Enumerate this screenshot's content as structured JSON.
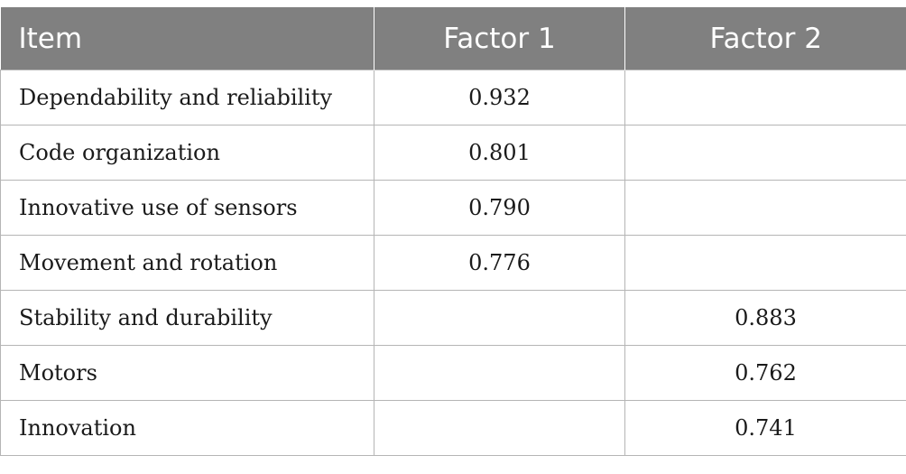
{
  "table": {
    "headers": [
      "Item",
      "Factor 1",
      "Factor 2"
    ],
    "rows": [
      {
        "item": "Dependability and reliability",
        "factor1": "0.932",
        "factor2": ""
      },
      {
        "item": "Code organization",
        "factor1": "0.801",
        "factor2": ""
      },
      {
        "item": "Innovative use of sensors",
        "factor1": "0.790",
        "factor2": ""
      },
      {
        "item": "Movement and rotation",
        "factor1": "0.776",
        "factor2": ""
      },
      {
        "item": "Stability and durability",
        "factor1": "",
        "factor2": "0.883"
      },
      {
        "item": "Motors",
        "factor1": "",
        "factor2": "0.762"
      },
      {
        "item": "Innovation",
        "factor1": "",
        "factor2": "0.741"
      }
    ]
  }
}
